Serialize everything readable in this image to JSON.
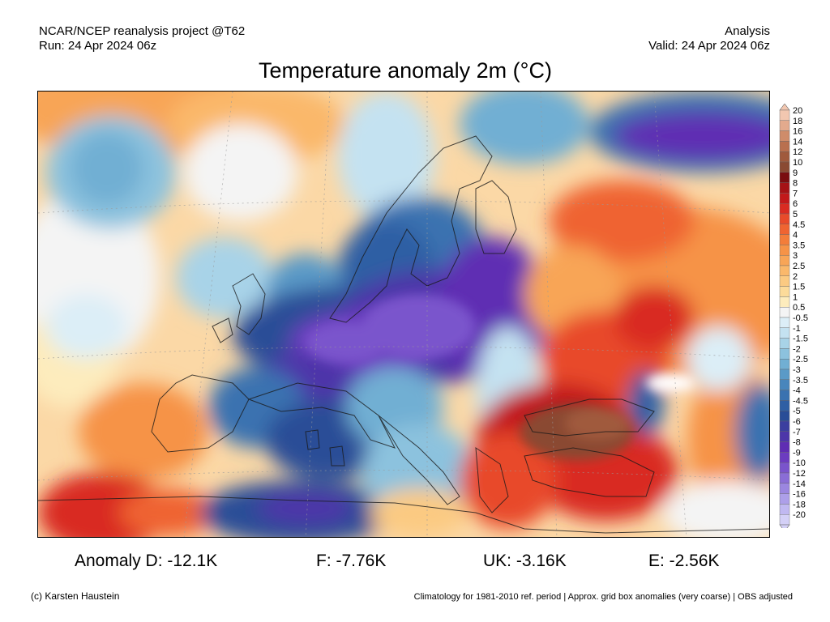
{
  "header": {
    "project": "NCAR/NCEP reanalysis project @T62",
    "run": "Run: 24 Apr 2024 06z",
    "kind": "Analysis",
    "valid": "Valid: 24 Apr 2024 06z"
  },
  "title": "Temperature anomaly 2m (°C)",
  "legend": {
    "labels": [
      "20",
      "18",
      "16",
      "14",
      "12",
      "10",
      "9",
      "8",
      "7",
      "6",
      "5",
      "4.5",
      "4",
      "3.5",
      "3",
      "2.5",
      "2",
      "1.5",
      "1",
      "0.5",
      "-0.5",
      "-1",
      "-1.5",
      "-2",
      "-2.5",
      "-3",
      "-3.5",
      "-4",
      "-4.5",
      "-5",
      "-6",
      "-7",
      "-8",
      "-9",
      "-10",
      "-12",
      "-14",
      "-16",
      "-18",
      "-20"
    ],
    "colors": [
      "#f2c7b0",
      "#e3aa8d",
      "#cf8c6a",
      "#b9704f",
      "#a05a3d",
      "#8a4a33",
      "#7a0d10",
      "#a51216",
      "#c2191b",
      "#d92b22",
      "#e84a2a",
      "#ef6431",
      "#f37d3a",
      "#f69347",
      "#f8a557",
      "#fab86b",
      "#fbca82",
      "#fcdb9a",
      "#fdecbd",
      "#f4f4f4",
      "#dceef7",
      "#c4e2f1",
      "#a8d3e8",
      "#8cc2de",
      "#71afd3",
      "#5a9ac7",
      "#4886bc",
      "#3a72b0",
      "#2f5fa4",
      "#294d97",
      "#3b3f9f",
      "#4d36a9",
      "#5f2db3",
      "#6c3cc0",
      "#7a54cc",
      "#8a6dd6",
      "#9b86e0",
      "#ad9fe9",
      "#c0b8f1",
      "#d4d0f7"
    ]
  },
  "stats": {
    "d": "Anomaly D: -12.1K",
    "f": "F: -7.76K",
    "uk": "UK: -3.16K",
    "e": "E: -2.56K"
  },
  "footer": {
    "credit": "(c) Karsten Haustein",
    "note": "Climatology for 1981-2010 ref. period | Approx. grid box anomalies (very coarse) | OBS adjusted"
  }
}
